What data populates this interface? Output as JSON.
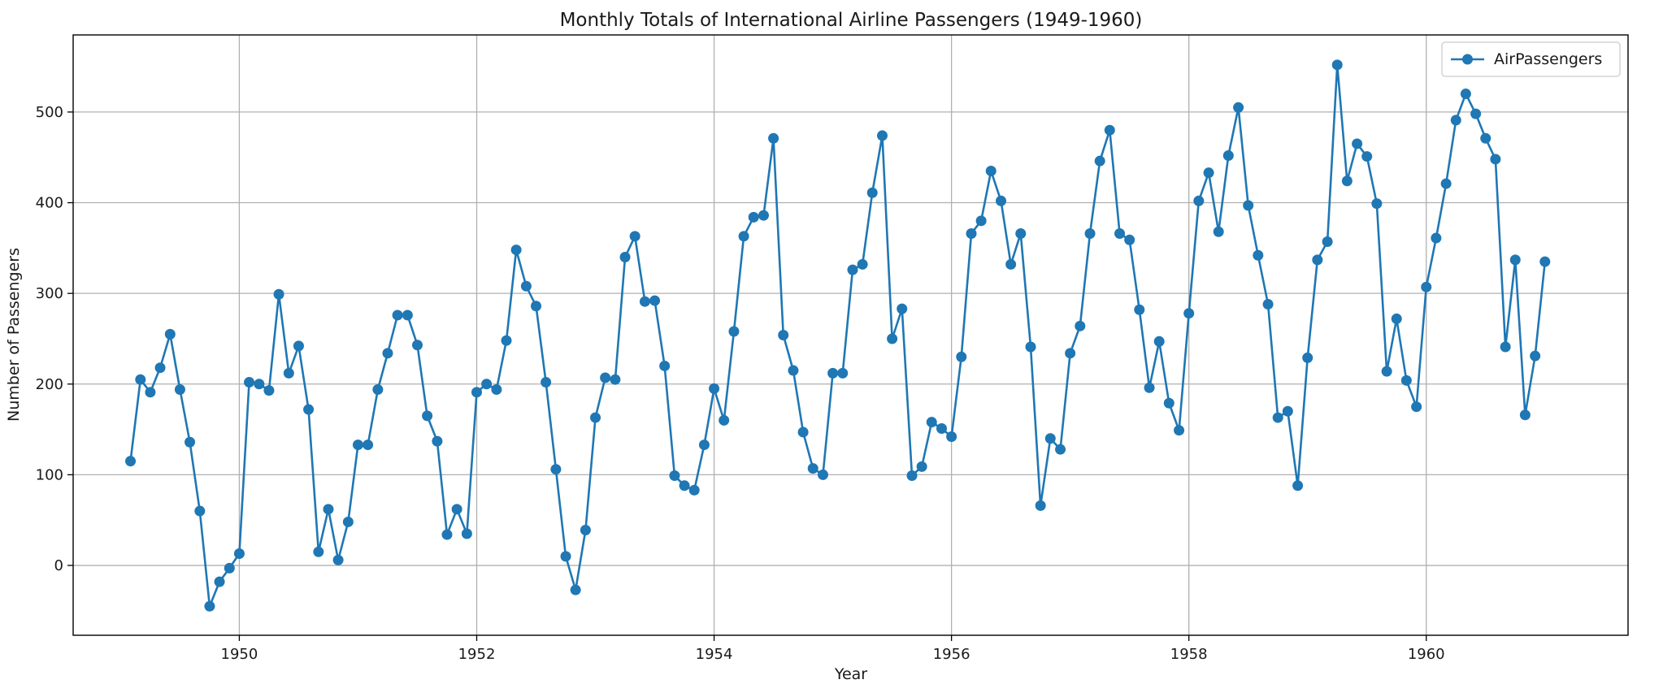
{
  "chart_data": {
    "type": "line",
    "title": "Monthly Totals of International Airline Passengers (1949-1960)",
    "xlabel": "Year",
    "ylabel": "Number of Passengers",
    "xlim": [
      1948.6,
      1961.7
    ],
    "ylim": [
      -77,
      585
    ],
    "x_ticks": [
      1950,
      1952,
      1954,
      1956,
      1958,
      1960
    ],
    "y_ticks": [
      0,
      100,
      200,
      300,
      400,
      500
    ],
    "grid": true,
    "legend_position": "top-right",
    "series": [
      {
        "name": "AirPassengers",
        "color": "#1f77b4",
        "marker": "circle",
        "x": [
          1949.083,
          1949.167,
          1949.25,
          1949.333,
          1949.417,
          1949.5,
          1949.583,
          1949.667,
          1949.75,
          1949.833,
          1949.917,
          1950.0,
          1950.083,
          1950.167,
          1950.25,
          1950.333,
          1950.417,
          1950.5,
          1950.583,
          1950.667,
          1950.75,
          1950.833,
          1950.917,
          1951.0,
          1951.083,
          1951.167,
          1951.25,
          1951.333,
          1951.417,
          1951.5,
          1951.583,
          1951.667,
          1951.75,
          1951.833,
          1951.917,
          1952.0,
          1952.083,
          1952.167,
          1952.25,
          1952.333,
          1952.417,
          1952.5,
          1952.583,
          1952.667,
          1952.75,
          1952.833,
          1952.917,
          1953.0,
          1953.083,
          1953.167,
          1953.25,
          1953.333,
          1953.417,
          1953.5,
          1953.583,
          1953.667,
          1953.75,
          1953.833,
          1953.917,
          1954.0,
          1954.083,
          1954.167,
          1954.25,
          1954.333,
          1954.417,
          1954.5,
          1954.583,
          1954.667,
          1954.75,
          1954.833,
          1954.917,
          1955.0,
          1955.083,
          1955.167,
          1955.25,
          1955.333,
          1955.417,
          1955.5,
          1955.583,
          1955.667,
          1955.75,
          1955.833,
          1955.917,
          1956.0,
          1956.083,
          1956.167,
          1956.25,
          1956.333,
          1956.417,
          1956.5,
          1956.583,
          1956.667,
          1956.75,
          1956.833,
          1956.917,
          1957.0,
          1957.083,
          1957.167,
          1957.25,
          1957.333,
          1957.417,
          1957.5,
          1957.583,
          1957.667,
          1957.75,
          1957.833,
          1957.917,
          1958.0,
          1958.083,
          1958.167,
          1958.25,
          1958.333,
          1958.417,
          1958.5,
          1958.583,
          1958.667,
          1958.75,
          1958.833,
          1958.917,
          1959.0,
          1959.083,
          1959.167,
          1959.25,
          1959.333,
          1959.417,
          1959.5,
          1959.583,
          1959.667,
          1959.75,
          1959.833,
          1959.917,
          1960.0,
          1960.083,
          1960.167,
          1960.25,
          1960.333,
          1960.417,
          1960.5,
          1960.583,
          1960.667,
          1960.75,
          1960.833,
          1960.917,
          1961.0
        ],
        "y": [
          115,
          205,
          191,
          218,
          255,
          194,
          136,
          60,
          -45,
          -18,
          -3,
          13,
          202,
          200,
          193,
          299,
          212,
          242,
          172,
          15,
          62,
          6,
          48,
          133,
          133,
          194,
          234,
          276,
          276,
          243,
          165,
          137,
          34,
          62,
          35,
          191,
          200,
          194,
          248,
          348,
          308,
          286,
          202,
          106,
          10,
          -27,
          39,
          163,
          207,
          205,
          340,
          363,
          291,
          292,
          220,
          99,
          88,
          83,
          133,
          195,
          160,
          258,
          363,
          384,
          386,
          471,
          254,
          215,
          147,
          107,
          100,
          212,
          212,
          326,
          332,
          411,
          474,
          250,
          283,
          99,
          109,
          158,
          151,
          142,
          230,
          366,
          380,
          435,
          402,
          332,
          366,
          241,
          66,
          140,
          128,
          234,
          264,
          366,
          446,
          480,
          366,
          359,
          282,
          196,
          247,
          179,
          149,
          278,
          402,
          433,
          368,
          452,
          505,
          397,
          342,
          288,
          163,
          170,
          88,
          229,
          337,
          357,
          552,
          424,
          465,
          451,
          399,
          214,
          272,
          204,
          175,
          307,
          361,
          421,
          491,
          520,
          498,
          471,
          448,
          241,
          337,
          166,
          231,
          335
        ]
      }
    ]
  }
}
